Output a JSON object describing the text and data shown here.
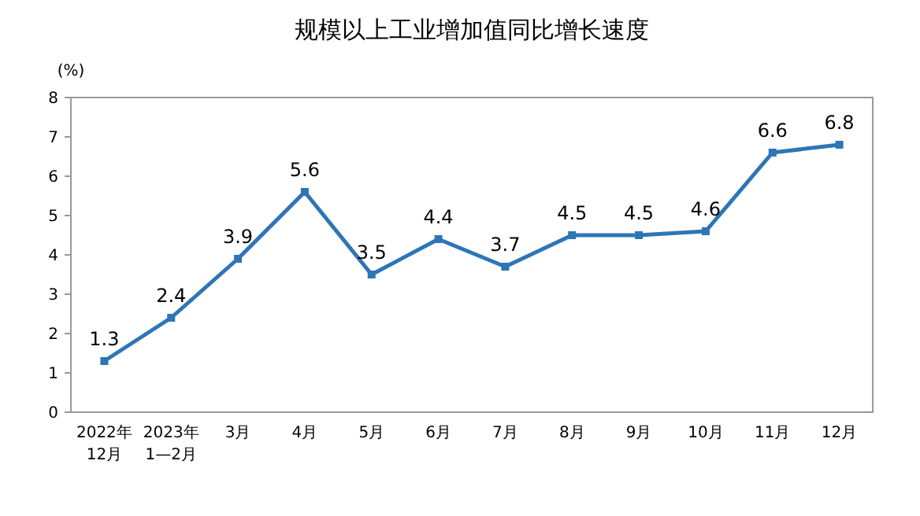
{
  "chart_data": {
    "type": "line",
    "title": "规模以上工业增加值同比增长速度",
    "ylabel": "(%)",
    "categories": [
      "2022年\n12月",
      "2023年\n1—2月",
      "3月",
      "4月",
      "5月",
      "6月",
      "7月",
      "8月",
      "9月",
      "10月",
      "11月",
      "12月"
    ],
    "series": [
      {
        "color": "#2e75b6",
        "values": [
          1.3,
          2.4,
          3.9,
          5.6,
          3.5,
          4.4,
          3.7,
          4.5,
          4.5,
          4.6,
          6.6,
          6.8
        ]
      }
    ],
    "ylim": [
      0,
      8
    ],
    "yticks": [
      0,
      1,
      2,
      3,
      4,
      5,
      6,
      7,
      8
    ],
    "grid": false,
    "marker": "square",
    "line_style": "solid",
    "data_labels": true
  }
}
